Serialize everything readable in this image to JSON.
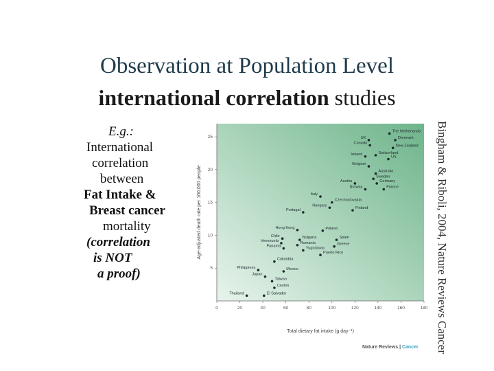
{
  "slide": {
    "title_line1": "Observation at Population Level",
    "title_line2_bold": "international correlation",
    "title_line2_rest": " studies",
    "left_text": {
      "eg": "E.g.:",
      "l1": "International",
      "l2": "correlation",
      "l3": "between",
      "l4": "Fat Intake &",
      "l5": "Breast cancer",
      "l6": "mortality",
      "l7": "(correlation",
      "l8": "is NOT",
      "l9": "a proof)"
    },
    "citation": "Bingham & Riboli, 2004, Nature Reviews Cancer",
    "publisher_a": "Nature Reviews | ",
    "publisher_b": "Cancer"
  },
  "chart_data": {
    "type": "scatter",
    "xlabel": "Total dietary fat intake (g day⁻¹)",
    "ylabel": "Age-adjusted death rate per 100,000 people",
    "xlim": [
      0,
      180
    ],
    "ylim": [
      0,
      27
    ],
    "xticks": [
      0,
      20,
      40,
      60,
      80,
      100,
      120,
      140,
      160,
      180
    ],
    "yticks": [
      5,
      10,
      15,
      20,
      25
    ],
    "points": [
      {
        "label": "The Netherlands",
        "x": 150,
        "y": 25.5
      },
      {
        "label": "UK",
        "x": 132,
        "y": 24.5
      },
      {
        "label": "Denmark",
        "x": 155,
        "y": 24.5
      },
      {
        "label": "Canada",
        "x": 133,
        "y": 23.7
      },
      {
        "label": "New Zealand",
        "x": 153,
        "y": 23.3
      },
      {
        "label": "Switzerland",
        "x": 138,
        "y": 22.2
      },
      {
        "label": "Ireland",
        "x": 129,
        "y": 22.0
      },
      {
        "label": "US",
        "x": 149,
        "y": 21.6
      },
      {
        "label": "Belgium",
        "x": 132,
        "y": 20.5
      },
      {
        "label": "Australia",
        "x": 138,
        "y": 19.4
      },
      {
        "label": "Sweden",
        "x": 136,
        "y": 18.6
      },
      {
        "label": "Austria",
        "x": 120,
        "y": 17.9
      },
      {
        "label": "Germany",
        "x": 139,
        "y": 17.9
      },
      {
        "label": "Norway",
        "x": 129,
        "y": 17.0
      },
      {
        "label": "France",
        "x": 145,
        "y": 17.0
      },
      {
        "label": "Italy",
        "x": 90,
        "y": 15.9
      },
      {
        "label": "Czechoslovakia",
        "x": 100,
        "y": 15.0
      },
      {
        "label": "Hungary",
        "x": 98,
        "y": 14.2
      },
      {
        "label": "Portugal",
        "x": 75,
        "y": 13.5
      },
      {
        "label": "Finland",
        "x": 118,
        "y": 13.8
      },
      {
        "label": "Hong Kong",
        "x": 70,
        "y": 10.8
      },
      {
        "label": "Poland",
        "x": 92,
        "y": 10.7
      },
      {
        "label": "Chile",
        "x": 57,
        "y": 9.5
      },
      {
        "label": "Bulgaria",
        "x": 72,
        "y": 9.3
      },
      {
        "label": "Spain",
        "x": 104,
        "y": 9.3
      },
      {
        "label": "Venezuela",
        "x": 56,
        "y": 8.8
      },
      {
        "label": "Romania",
        "x": 70,
        "y": 8.5
      },
      {
        "label": "Greece",
        "x": 102,
        "y": 8.3
      },
      {
        "label": "Panama",
        "x": 58,
        "y": 8.0
      },
      {
        "label": "Yugoslavia",
        "x": 75,
        "y": 7.7
      },
      {
        "label": "Puerto Rico",
        "x": 90,
        "y": 7.0
      },
      {
        "label": "Colombia",
        "x": 50,
        "y": 6.0
      },
      {
        "label": "Philippines",
        "x": 36,
        "y": 4.7
      },
      {
        "label": "Mexico",
        "x": 58,
        "y": 4.5
      },
      {
        "label": "Japan",
        "x": 42,
        "y": 3.7
      },
      {
        "label": "Taiwan",
        "x": 48,
        "y": 3.0
      },
      {
        "label": "Ceylon",
        "x": 50,
        "y": 2.0
      },
      {
        "label": "Thailand",
        "x": 26,
        "y": 0.8
      },
      {
        "label": "El Salvador",
        "x": 41,
        "y": 0.8
      }
    ]
  }
}
